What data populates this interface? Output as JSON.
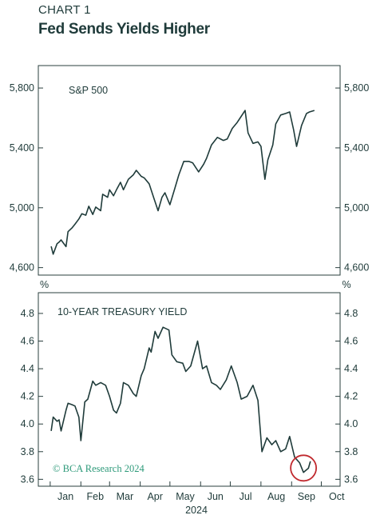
{
  "header": {
    "kicker": "CHART 1",
    "title": "Fed Sends Yields Higher"
  },
  "watermark": "© BCA Research 2024",
  "colors": {
    "line": "#1f3b3a",
    "frame": "#2a3f3e",
    "highlight_circle": "#c0282d",
    "watermark": "#2e9a7a"
  },
  "chart_data": [
    {
      "type": "line",
      "title": "S&P 500",
      "unit": "",
      "ylim": [
        4550,
        5950
      ],
      "yticks": [
        4600,
        5000,
        5400,
        5800
      ],
      "ytick_labels": [
        "4,600",
        "5,000",
        "5,400",
        "5,800"
      ],
      "legend": "none",
      "grid": false,
      "x": [
        "2024-01-02",
        "2024-01-04",
        "2024-01-08",
        "2024-01-10",
        "2024-01-12",
        "2024-01-17",
        "2024-01-19",
        "2024-01-23",
        "2024-01-26",
        "2024-01-30",
        "2024-02-02",
        "2024-02-06",
        "2024-02-09",
        "2024-02-13",
        "2024-02-16",
        "2024-02-21",
        "2024-02-23",
        "2024-02-28",
        "2024-03-01",
        "2024-03-05",
        "2024-03-08",
        "2024-03-12",
        "2024-03-15",
        "2024-03-20",
        "2024-03-25",
        "2024-03-28",
        "2024-04-02",
        "2024-04-05",
        "2024-04-10",
        "2024-04-15",
        "2024-04-19",
        "2024-04-23",
        "2024-04-26",
        "2024-05-01",
        "2024-05-06",
        "2024-05-10",
        "2024-05-15",
        "2024-05-20",
        "2024-05-24",
        "2024-05-30",
        "2024-06-04",
        "2024-06-07",
        "2024-06-12",
        "2024-06-18",
        "2024-06-24",
        "2024-06-28",
        "2024-07-03",
        "2024-07-08",
        "2024-07-11",
        "2024-07-16",
        "2024-07-19",
        "2024-07-24",
        "2024-07-29",
        "2024-08-01",
        "2024-08-05",
        "2024-08-08",
        "2024-08-13",
        "2024-08-16",
        "2024-08-21",
        "2024-08-26",
        "2024-08-30",
        "2024-09-03",
        "2024-09-06",
        "2024-09-11",
        "2024-09-16",
        "2024-09-19",
        "2024-09-24"
      ],
      "series": [
        {
          "name": "S&P 500",
          "values": [
            4742,
            4690,
            4760,
            4770,
            4785,
            4740,
            4840,
            4865,
            4890,
            4925,
            4960,
            4950,
            5010,
            4955,
            5005,
            4980,
            5090,
            5070,
            5120,
            5080,
            5120,
            5170,
            5120,
            5190,
            5220,
            5250,
            5210,
            5200,
            5160,
            5060,
            4980,
            5070,
            5100,
            5020,
            5130,
            5220,
            5310,
            5310,
            5300,
            5240,
            5290,
            5330,
            5420,
            5470,
            5450,
            5460,
            5530,
            5570,
            5600,
            5650,
            5500,
            5430,
            5440,
            5410,
            5190,
            5320,
            5420,
            5560,
            5620,
            5630,
            5640,
            5520,
            5410,
            5550,
            5630,
            5640,
            5650
          ]
        }
      ]
    },
    {
      "type": "line",
      "title": "10-YEAR TREASURY YIELD",
      "unit": "%",
      "ylim": [
        3.55,
        4.95
      ],
      "yticks": [
        3.6,
        3.8,
        4.0,
        4.2,
        4.4,
        4.6,
        4.8
      ],
      "ytick_labels": [
        "3.6",
        "3.8",
        "4.0",
        "4.2",
        "4.4",
        "4.6",
        "4.8"
      ],
      "legend": "none",
      "grid": false,
      "x": [
        "2024-01-02",
        "2024-01-04",
        "2024-01-08",
        "2024-01-10",
        "2024-01-12",
        "2024-01-17",
        "2024-01-19",
        "2024-01-23",
        "2024-01-26",
        "2024-01-30",
        "2024-02-01",
        "2024-02-05",
        "2024-02-08",
        "2024-02-13",
        "2024-02-16",
        "2024-02-21",
        "2024-02-26",
        "2024-03-01",
        "2024-03-05",
        "2024-03-08",
        "2024-03-12",
        "2024-03-15",
        "2024-03-20",
        "2024-03-25",
        "2024-03-28",
        "2024-04-02",
        "2024-04-05",
        "2024-04-10",
        "2024-04-12",
        "2024-04-16",
        "2024-04-19",
        "2024-04-24",
        "2024-04-30",
        "2024-05-03",
        "2024-05-08",
        "2024-05-14",
        "2024-05-17",
        "2024-05-22",
        "2024-05-29",
        "2024-06-03",
        "2024-06-07",
        "2024-06-12",
        "2024-06-17",
        "2024-06-21",
        "2024-06-27",
        "2024-07-02",
        "2024-07-08",
        "2024-07-12",
        "2024-07-18",
        "2024-07-24",
        "2024-07-29",
        "2024-08-02",
        "2024-08-07",
        "2024-08-12",
        "2024-08-16",
        "2024-08-21",
        "2024-08-26",
        "2024-08-30",
        "2024-09-04",
        "2024-09-09",
        "2024-09-13",
        "2024-09-18",
        "2024-09-20"
      ],
      "series": [
        {
          "name": "10-Year Treasury Yield",
          "values": [
            3.95,
            4.05,
            4.02,
            4.03,
            3.95,
            4.1,
            4.15,
            4.14,
            4.13,
            4.05,
            3.88,
            4.16,
            4.18,
            4.31,
            4.28,
            4.3,
            4.28,
            4.2,
            4.1,
            4.08,
            4.15,
            4.3,
            4.28,
            4.22,
            4.2,
            4.35,
            4.4,
            4.55,
            4.52,
            4.67,
            4.62,
            4.7,
            4.68,
            4.5,
            4.45,
            4.44,
            4.38,
            4.42,
            4.6,
            4.4,
            4.42,
            4.3,
            4.28,
            4.25,
            4.32,
            4.42,
            4.3,
            4.18,
            4.2,
            4.28,
            4.17,
            3.8,
            3.9,
            3.85,
            3.88,
            3.8,
            3.82,
            3.91,
            3.76,
            3.72,
            3.65,
            3.68,
            3.73
          ]
        }
      ],
      "annotation": "circle highlighting the September 2024 low"
    }
  ],
  "x_axis": {
    "months": [
      "Jan",
      "Feb",
      "Mar",
      "Apr",
      "May",
      "Jun",
      "Jul",
      "Aug",
      "Sep",
      "Oct"
    ],
    "year": "2024"
  }
}
